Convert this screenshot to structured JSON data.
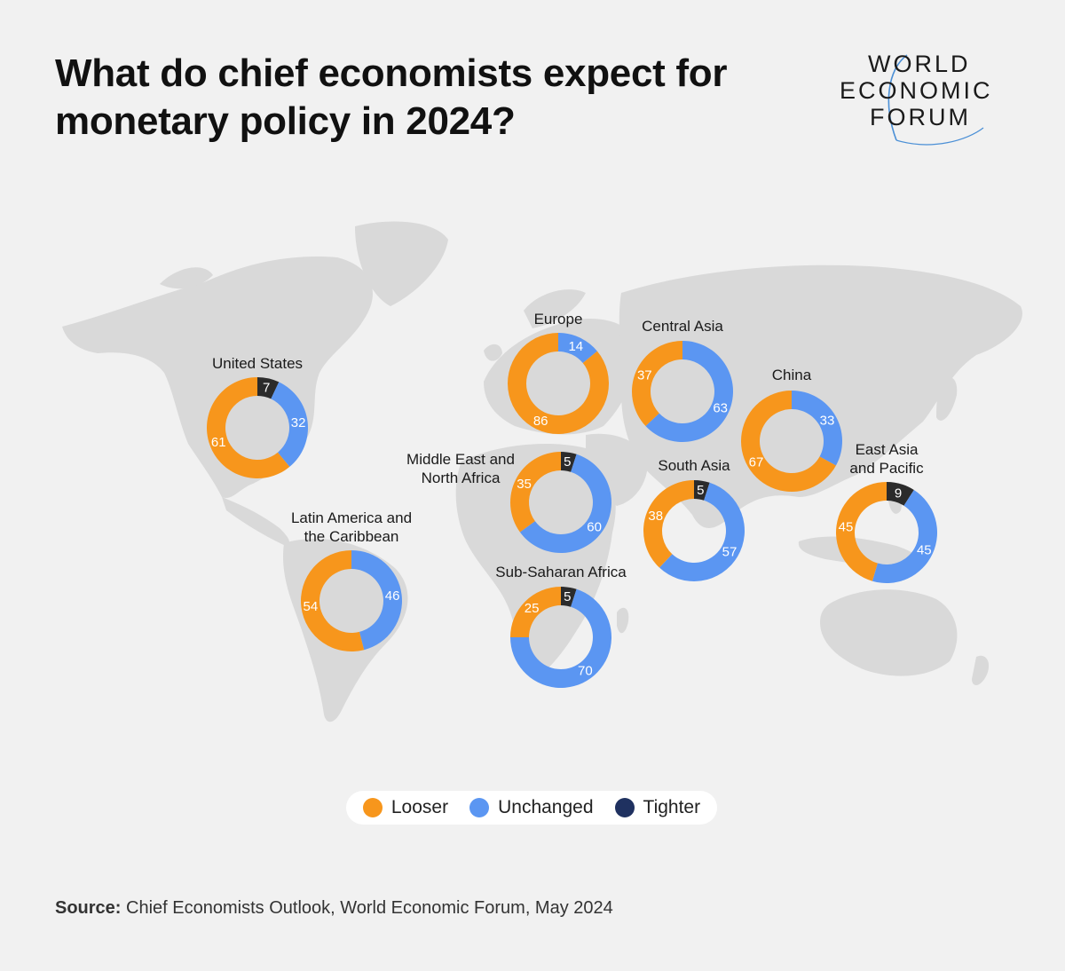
{
  "title": "What do chief economists expect for monetary policy in 2024?",
  "logo": {
    "line1": "WORLD",
    "line2": "ECONOMIC",
    "line3": "FORUM",
    "arc_color": "#4a8fd6"
  },
  "colors": {
    "looser": "#f7961c",
    "unchanged": "#5b96f2",
    "tighter": "#2b2b2b",
    "tighter_legend": "#1f3160",
    "map": "#d9d9d9",
    "background": "#f1f1f1"
  },
  "legend": {
    "looser": "Looser",
    "unchanged": "Unchanged",
    "tighter": "Tighter"
  },
  "source": {
    "label": "Source:",
    "text": "Chief Economists Outlook, World Economic Forum, May 2024"
  },
  "chart_data": {
    "type": "donut",
    "title": "What do chief economists expect for monetary policy in 2024?",
    "categories": [
      "Looser",
      "Unchanged",
      "Tighter"
    ],
    "regions": [
      {
        "name": "United States",
        "looser": 61,
        "unchanged": 32,
        "tighter": 7
      },
      {
        "name": "Latin America and the Caribbean",
        "looser": 54,
        "unchanged": 46,
        "tighter": 0
      },
      {
        "name": "Europe",
        "looser": 86,
        "unchanged": 14,
        "tighter": 0
      },
      {
        "name": "Middle East and North Africa",
        "looser": 35,
        "unchanged": 60,
        "tighter": 5
      },
      {
        "name": "Sub-Saharan Africa",
        "looser": 25,
        "unchanged": 70,
        "tighter": 5
      },
      {
        "name": "Central Asia",
        "looser": 37,
        "unchanged": 63,
        "tighter": 0
      },
      {
        "name": "South Asia",
        "looser": 38,
        "unchanged": 57,
        "tighter": 5
      },
      {
        "name": "China",
        "looser": 67,
        "unchanged": 33,
        "tighter": 0
      },
      {
        "name": "East Asia and Pacific",
        "looser": 45,
        "unchanged": 45,
        "tighter": 9
      }
    ]
  }
}
